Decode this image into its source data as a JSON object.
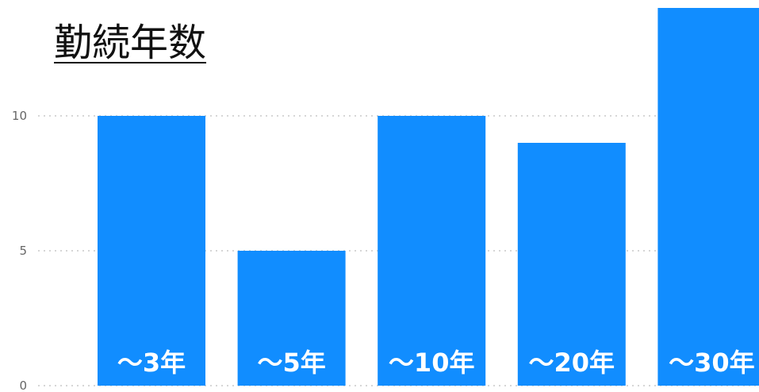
{
  "chart_data": {
    "type": "bar",
    "title": "勤続年数",
    "categories": [
      "～3年",
      "～5年",
      "～10年",
      "～20年",
      "～30年"
    ],
    "values": [
      10,
      5,
      10,
      9,
      14
    ],
    "ylim": [
      0,
      14
    ],
    "yticks": [
      0,
      5,
      10
    ],
    "grid": true,
    "bar_color": "#118dff",
    "label_color": "#ffffff"
  }
}
